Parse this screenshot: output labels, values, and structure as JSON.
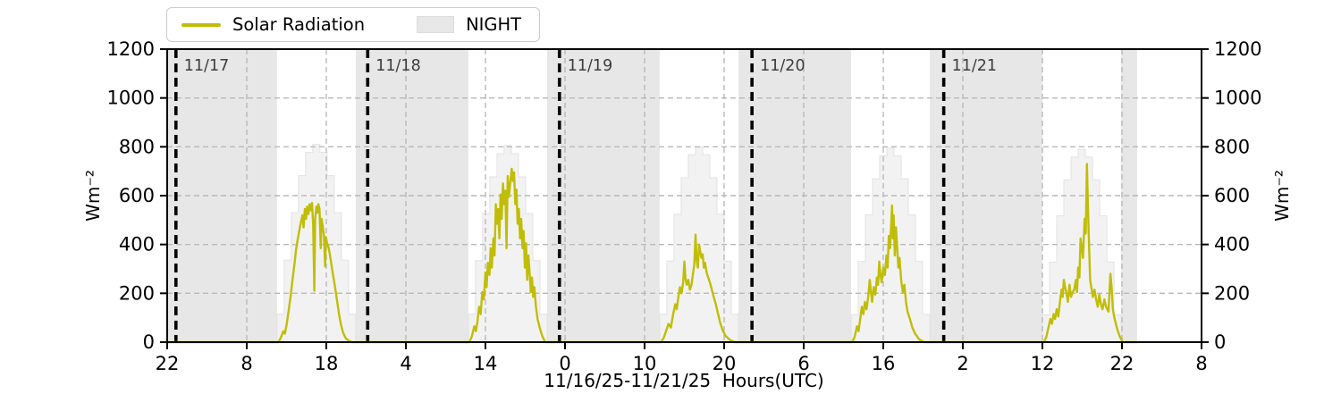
{
  "legend": {
    "series_label": "Solar Radiation",
    "night_label": "NIGHT"
  },
  "ylabel_left": "Wm⁻²",
  "ylabel_right": "Wm⁻²",
  "xlabel": "11/16/25-11/21/25  Hours(UTC)",
  "colors": {
    "solar_line": "#c0bd08",
    "night_fill": "#e7e7e7",
    "clearsky_fill": "#f2f2f2",
    "clearsky_edge": "#e2e2e2",
    "grid": "#b9b9b9",
    "axis": "#000000",
    "day_marker": "#000000",
    "day_label_text": "#3d3d3d"
  },
  "chart_data": {
    "type": "line",
    "title": "",
    "xlabel": "11/16/25-11/21/25  Hours(UTC)",
    "ylabel": "Wm⁻²",
    "x_unit": "hours since 11/16/25 22:00 UTC",
    "xlim": [
      0,
      130
    ],
    "ylim": [
      0,
      1200
    ],
    "grid": true,
    "legend_position": "top-left-outside",
    "yticks": [
      0,
      200,
      400,
      600,
      800,
      1000,
      1200
    ],
    "xticks": [
      {
        "pos": 0,
        "label": "22"
      },
      {
        "pos": 10,
        "label": "8"
      },
      {
        "pos": 20,
        "label": "18"
      },
      {
        "pos": 30,
        "label": "4"
      },
      {
        "pos": 40,
        "label": "14"
      },
      {
        "pos": 50,
        "label": "0"
      },
      {
        "pos": 60,
        "label": "10"
      },
      {
        "pos": 70,
        "label": "20"
      },
      {
        "pos": 80,
        "label": "6"
      },
      {
        "pos": 90,
        "label": "16"
      },
      {
        "pos": 100,
        "label": "2"
      },
      {
        "pos": 110,
        "label": "12"
      },
      {
        "pos": 120,
        "label": "22"
      },
      {
        "pos": 130,
        "label": "8"
      }
    ],
    "day_markers": [
      {
        "label": "11/17",
        "x": 1.1
      },
      {
        "label": "11/18",
        "x": 25.2
      },
      {
        "label": "11/19",
        "x": 49.3
      },
      {
        "label": "11/20",
        "x": 73.5
      },
      {
        "label": "11/21",
        "x": 97.6
      }
    ],
    "night_bands": [
      [
        0,
        13.8
      ],
      [
        23.7,
        37.85
      ],
      [
        47.75,
        61.9
      ],
      [
        71.8,
        85.95
      ],
      [
        95.85,
        110.0
      ],
      [
        119.9,
        121.9
      ]
    ],
    "clear_sky_steps": [
      {
        "start": 13.8,
        "end": 23.7,
        "values": [
          115,
          336,
          530,
          682,
          777,
          810,
          777,
          682,
          530,
          336,
          115
        ]
      },
      {
        "start": 37.85,
        "end": 47.75,
        "values": [
          115,
          334,
          527,
          677,
          772,
          805,
          772,
          677,
          527,
          334,
          115
        ]
      },
      {
        "start": 61.9,
        "end": 71.8,
        "values": [
          114,
          332,
          524,
          673,
          768,
          800,
          768,
          673,
          524,
          332,
          114
        ]
      },
      {
        "start": 85.95,
        "end": 95.85,
        "values": [
          113,
          330,
          521,
          669,
          763,
          795,
          763,
          669,
          521,
          330,
          113
        ]
      },
      {
        "start": 110.0,
        "end": 119.9,
        "values": [
          112,
          328,
          517,
          665,
          758,
          790,
          758,
          665,
          517,
          328,
          112
        ]
      }
    ],
    "series": [
      {
        "name": "Solar Radiation",
        "points": [
          [
            0,
            0
          ],
          [
            13.9,
            0
          ],
          [
            14.0,
            0
          ],
          [
            14.3,
            20
          ],
          [
            14.6,
            45
          ],
          [
            14.8,
            35
          ],
          [
            15.0,
            70
          ],
          [
            15.25,
            125
          ],
          [
            15.5,
            185
          ],
          [
            15.75,
            255
          ],
          [
            16.0,
            320
          ],
          [
            16.2,
            380
          ],
          [
            16.4,
            420
          ],
          [
            16.6,
            455
          ],
          [
            16.8,
            490
          ],
          [
            17.0,
            520
          ],
          [
            17.15,
            470
          ],
          [
            17.3,
            545
          ],
          [
            17.45,
            505
          ],
          [
            17.6,
            555
          ],
          [
            17.75,
            525
          ],
          [
            17.9,
            565
          ],
          [
            18.05,
            540
          ],
          [
            18.2,
            570
          ],
          [
            18.35,
            480
          ],
          [
            18.5,
            210
          ],
          [
            18.6,
            505
          ],
          [
            18.75,
            555
          ],
          [
            18.9,
            530
          ],
          [
            19.0,
            565
          ],
          [
            19.15,
            545
          ],
          [
            19.3,
            385
          ],
          [
            19.4,
            505
          ],
          [
            19.55,
            475
          ],
          [
            19.7,
            440
          ],
          [
            19.85,
            310
          ],
          [
            19.95,
            430
          ],
          [
            20.1,
            405
          ],
          [
            20.3,
            385
          ],
          [
            20.5,
            350
          ],
          [
            20.7,
            305
          ],
          [
            20.9,
            265
          ],
          [
            21.1,
            225
          ],
          [
            21.35,
            170
          ],
          [
            21.6,
            115
          ],
          [
            21.85,
            70
          ],
          [
            22.1,
            40
          ],
          [
            22.4,
            18
          ],
          [
            22.8,
            6
          ],
          [
            23.2,
            0
          ],
          [
            38.0,
            0
          ],
          [
            38.3,
            25
          ],
          [
            38.6,
            65
          ],
          [
            38.8,
            45
          ],
          [
            39.0,
            85
          ],
          [
            39.2,
            145
          ],
          [
            39.4,
            115
          ],
          [
            39.6,
            205
          ],
          [
            39.8,
            175
          ],
          [
            40.0,
            285
          ],
          [
            40.15,
            225
          ],
          [
            40.3,
            325
          ],
          [
            40.5,
            275
          ],
          [
            40.65,
            385
          ],
          [
            40.8,
            305
          ],
          [
            41.0,
            425
          ],
          [
            41.15,
            355
          ],
          [
            41.3,
            565
          ],
          [
            41.45,
            485
          ],
          [
            41.6,
            545
          ],
          [
            41.75,
            425
          ],
          [
            41.9,
            605
          ],
          [
            42.05,
            505
          ],
          [
            42.2,
            650
          ],
          [
            42.35,
            565
          ],
          [
            42.5,
            620
          ],
          [
            42.65,
            385
          ],
          [
            42.8,
            680
          ],
          [
            42.95,
            595
          ],
          [
            43.1,
            645
          ],
          [
            43.3,
            710
          ],
          [
            43.45,
            660
          ],
          [
            43.6,
            695
          ],
          [
            43.75,
            565
          ],
          [
            43.9,
            625
          ],
          [
            44.05,
            485
          ],
          [
            44.2,
            545
          ],
          [
            44.35,
            425
          ],
          [
            44.5,
            505
          ],
          [
            44.65,
            385
          ],
          [
            44.8,
            455
          ],
          [
            44.95,
            305
          ],
          [
            45.1,
            405
          ],
          [
            45.25,
            255
          ],
          [
            45.4,
            355
          ],
          [
            45.55,
            285
          ],
          [
            45.7,
            205
          ],
          [
            45.85,
            265
          ],
          [
            46.0,
            185
          ],
          [
            46.15,
            225
          ],
          [
            46.35,
            145
          ],
          [
            46.55,
            95
          ],
          [
            46.85,
            55
          ],
          [
            47.15,
            25
          ],
          [
            47.5,
            0
          ],
          [
            62.1,
            0
          ],
          [
            62.4,
            18
          ],
          [
            62.7,
            45
          ],
          [
            63.0,
            75
          ],
          [
            63.3,
            60
          ],
          [
            63.6,
            115
          ],
          [
            63.85,
            155
          ],
          [
            64.05,
            135
          ],
          [
            64.25,
            185
          ],
          [
            64.45,
            225
          ],
          [
            64.65,
            200
          ],
          [
            64.85,
            245
          ],
          [
            65.0,
            330
          ],
          [
            65.15,
            260
          ],
          [
            65.3,
            235
          ],
          [
            65.5,
            255
          ],
          [
            65.7,
            215
          ],
          [
            65.9,
            235
          ],
          [
            66.1,
            285
          ],
          [
            66.25,
            315
          ],
          [
            66.4,
            440
          ],
          [
            66.55,
            335
          ],
          [
            66.7,
            305
          ],
          [
            66.85,
            400
          ],
          [
            67.0,
            370
          ],
          [
            67.15,
            345
          ],
          [
            67.3,
            360
          ],
          [
            67.45,
            305
          ],
          [
            67.6,
            325
          ],
          [
            67.8,
            285
          ],
          [
            68.0,
            265
          ],
          [
            68.2,
            245
          ],
          [
            68.45,
            215
          ],
          [
            68.7,
            185
          ],
          [
            68.95,
            155
          ],
          [
            69.2,
            120
          ],
          [
            69.5,
            80
          ],
          [
            69.8,
            50
          ],
          [
            70.2,
            25
          ],
          [
            70.7,
            10
          ],
          [
            71.3,
            0
          ],
          [
            86.1,
            0
          ],
          [
            86.4,
            22
          ],
          [
            86.7,
            65
          ],
          [
            86.9,
            45
          ],
          [
            87.1,
            95
          ],
          [
            87.3,
            145
          ],
          [
            87.5,
            115
          ],
          [
            87.7,
            165
          ],
          [
            87.9,
            135
          ],
          [
            88.1,
            185
          ],
          [
            88.3,
            255
          ],
          [
            88.45,
            205
          ],
          [
            88.6,
            165
          ],
          [
            88.8,
            225
          ],
          [
            89.0,
            195
          ],
          [
            89.2,
            265
          ],
          [
            89.35,
            235
          ],
          [
            89.5,
            330
          ],
          [
            89.65,
            275
          ],
          [
            89.8,
            245
          ],
          [
            90.0,
            305
          ],
          [
            90.2,
            275
          ],
          [
            90.4,
            355
          ],
          [
            90.55,
            305
          ],
          [
            90.7,
            435
          ],
          [
            90.85,
            385
          ],
          [
            91.0,
            485
          ],
          [
            91.1,
            560
          ],
          [
            91.2,
            425
          ],
          [
            91.3,
            520
          ],
          [
            91.45,
            355
          ],
          [
            91.6,
            470
          ],
          [
            91.75,
            385
          ],
          [
            91.9,
            305
          ],
          [
            92.05,
            345
          ],
          [
            92.25,
            255
          ],
          [
            92.45,
            205
          ],
          [
            92.65,
            235
          ],
          [
            92.85,
            165
          ],
          [
            93.05,
            125
          ],
          [
            93.35,
            95
          ],
          [
            93.65,
            60
          ],
          [
            94.0,
            35
          ],
          [
            94.5,
            12
          ],
          [
            95.1,
            0
          ],
          [
            110.2,
            0
          ],
          [
            110.5,
            22
          ],
          [
            110.8,
            65
          ],
          [
            111.0,
            95
          ],
          [
            111.2,
            75
          ],
          [
            111.4,
            115
          ],
          [
            111.6,
            95
          ],
          [
            111.8,
            135
          ],
          [
            112.0,
            105
          ],
          [
            112.2,
            165
          ],
          [
            112.4,
            215
          ],
          [
            112.55,
            185
          ],
          [
            112.7,
            255
          ],
          [
            112.85,
            225
          ],
          [
            113.0,
            205
          ],
          [
            113.2,
            165
          ],
          [
            113.4,
            235
          ],
          [
            113.6,
            185
          ],
          [
            113.8,
            205
          ],
          [
            114.0,
            215
          ],
          [
            114.2,
            255
          ],
          [
            114.35,
            205
          ],
          [
            114.5,
            305
          ],
          [
            114.65,
            265
          ],
          [
            114.8,
            425
          ],
          [
            114.95,
            385
          ],
          [
            115.1,
            345
          ],
          [
            115.3,
            505
          ],
          [
            115.45,
            445
          ],
          [
            115.6,
            730
          ],
          [
            115.72,
            560
          ],
          [
            115.85,
            405
          ],
          [
            116.0,
            255
          ],
          [
            116.15,
            225
          ],
          [
            116.35,
            185
          ],
          [
            116.55,
            215
          ],
          [
            116.75,
            175
          ],
          [
            116.95,
            145
          ],
          [
            117.15,
            195
          ],
          [
            117.35,
            155
          ],
          [
            117.55,
            135
          ],
          [
            117.8,
            175
          ],
          [
            118.0,
            145
          ],
          [
            118.3,
            125
          ],
          [
            118.55,
            280
          ],
          [
            118.7,
            225
          ],
          [
            118.85,
            135
          ],
          [
            119.05,
            100
          ],
          [
            119.35,
            60
          ],
          [
            119.7,
            25
          ],
          [
            120.1,
            0
          ],
          [
            122.0,
            0
          ]
        ]
      }
    ]
  }
}
